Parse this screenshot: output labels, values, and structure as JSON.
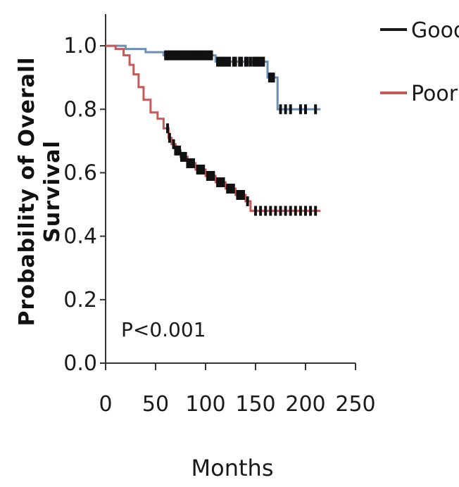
{
  "chart_data": {
    "type": "line",
    "subtype": "kaplan-meier",
    "xlabel": "Months",
    "ylabel_lines": [
      "Probability of Overall",
      "Survival"
    ],
    "xlim": [
      0,
      250
    ],
    "ylim": [
      0,
      1.1
    ],
    "x_ticks": [
      0,
      50,
      100,
      150,
      200,
      250
    ],
    "x_tick_labels": [
      "0",
      "50",
      "100",
      "150",
      "200",
      "250"
    ],
    "y_ticks": [
      0.0,
      0.2,
      0.4,
      0.6,
      0.8,
      1.0
    ],
    "y_tick_labels": [
      "0.0",
      "0.2",
      "0.4",
      "0.6",
      "0.8",
      "1.0"
    ],
    "annotation": "P<0.001",
    "grid": false,
    "legend_position": "top-right",
    "series": [
      {
        "name": "Good",
        "color": "#6b8fb5",
        "steps": [
          [
            0,
            1.0
          ],
          [
            20,
            0.99
          ],
          [
            40,
            0.98
          ],
          [
            58,
            0.97
          ],
          [
            110,
            0.95
          ],
          [
            162,
            0.9
          ],
          [
            172,
            0.8
          ],
          [
            215,
            0.8
          ]
        ],
        "censor_x": [
          60,
          62,
          64,
          66,
          68,
          70,
          72,
          74,
          76,
          78,
          80,
          82,
          84,
          86,
          88,
          90,
          92,
          94,
          96,
          98,
          100,
          102,
          104,
          106,
          112,
          114,
          116,
          118,
          120,
          122,
          124,
          128,
          130,
          134,
          136,
          140,
          142,
          145,
          148,
          150,
          152,
          154,
          156,
          158,
          164,
          166,
          168,
          175,
          180,
          185,
          195,
          200,
          210
        ]
      },
      {
        "name": "Poor",
        "color": "#c45a5a",
        "steps": [
          [
            0,
            1.0
          ],
          [
            10,
            0.99
          ],
          [
            18,
            0.97
          ],
          [
            24,
            0.94
          ],
          [
            28,
            0.91
          ],
          [
            33,
            0.87
          ],
          [
            38,
            0.83
          ],
          [
            45,
            0.79
          ],
          [
            52,
            0.77
          ],
          [
            58,
            0.74
          ],
          [
            63,
            0.71
          ],
          [
            66,
            0.69
          ],
          [
            70,
            0.67
          ],
          [
            75,
            0.65
          ],
          [
            82,
            0.63
          ],
          [
            90,
            0.61
          ],
          [
            100,
            0.59
          ],
          [
            110,
            0.57
          ],
          [
            120,
            0.55
          ],
          [
            130,
            0.53
          ],
          [
            140,
            0.51
          ],
          [
            145,
            0.48
          ],
          [
            215,
            0.48
          ]
        ],
        "censor_x": [
          62,
          64,
          68,
          70,
          72,
          74,
          76,
          78,
          80,
          82,
          84,
          86,
          88,
          92,
          94,
          96,
          98,
          102,
          104,
          106,
          108,
          112,
          114,
          116,
          118,
          122,
          124,
          126,
          128,
          132,
          134,
          136,
          138,
          142,
          150,
          155,
          160,
          165,
          170,
          175,
          180,
          185,
          190,
          195,
          200,
          205,
          210
        ]
      }
    ]
  }
}
